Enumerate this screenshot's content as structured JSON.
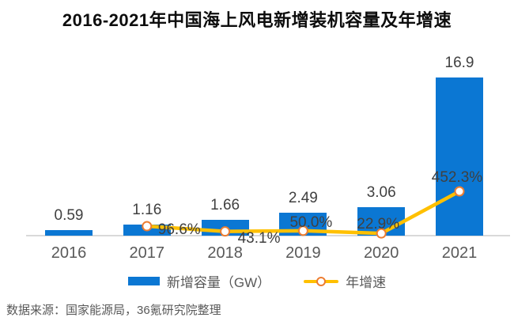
{
  "title": "2016-2021年中国海上风电新增装机容量及年增速",
  "legend": {
    "bar_label": "新增容量（GW）",
    "line_label": "年增速"
  },
  "footer_source": "数据来源：国家能源局，36氪研究院整理",
  "colors": {
    "bar": "#0b77d3",
    "line": "#ffc000",
    "marker_fill": "#ffffff",
    "marker_ring": "#ed7d31",
    "axis_line": "#d9d9d9",
    "axis_text": "#595959",
    "value_text": "#404040"
  },
  "chart_data": {
    "type": "bar",
    "combo": "bar+line",
    "title": "2016-2021年中国海上风电新增装机容量及年增速",
    "categories": [
      "2016",
      "2017",
      "2018",
      "2019",
      "2020",
      "2021"
    ],
    "series": [
      {
        "name": "新增容量（GW）",
        "type": "bar",
        "unit": "GW",
        "values": [
          0.59,
          1.16,
          1.66,
          2.49,
          3.06,
          16.9
        ],
        "labels": [
          "0.59",
          "1.16",
          "1.66",
          "2.49",
          "3.06",
          "16.9"
        ]
      },
      {
        "name": "年增速",
        "type": "line",
        "unit": "%",
        "values": [
          null,
          96.6,
          43.1,
          50.0,
          22.9,
          452.3
        ],
        "labels": [
          "",
          "96.6%",
          "43.1%",
          "50.0%",
          "22.9%",
          "452.3%"
        ]
      }
    ],
    "xlabel": "",
    "ylabel": "",
    "ylim_left_gw": [
      0,
      17
    ],
    "ylim_right_percent": [
      0,
      480
    ],
    "grid": false,
    "y_axes_visible": false,
    "legend_position": "bottom"
  }
}
